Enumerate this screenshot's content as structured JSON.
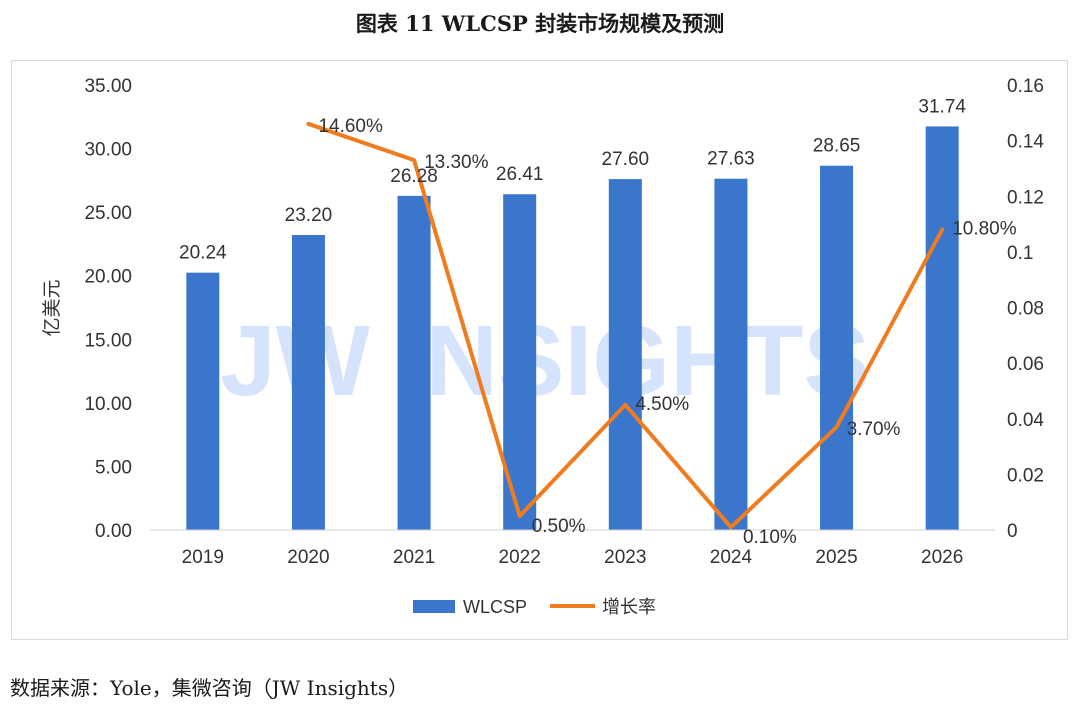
{
  "page": {
    "title": "图表 11 WLCSP  封装市场规模及预测",
    "source": "数据来源：Yole，集微咨询（JW Insights）",
    "watermark": "JW INSIGHTS"
  },
  "chart_data": {
    "type": "bar+line",
    "categories": [
      "2019",
      "2020",
      "2021",
      "2022",
      "2023",
      "2024",
      "2025",
      "2026"
    ],
    "series": [
      {
        "name": "WLCSP",
        "type": "bar",
        "axis": "left",
        "color": "#3a76cc",
        "values": [
          20.24,
          23.2,
          26.28,
          26.41,
          27.6,
          27.63,
          28.65,
          31.74
        ],
        "labels": [
          "20.24",
          "23.20",
          "26.28",
          "26.41",
          "27.60",
          "27.63",
          "28.65",
          "31.74"
        ]
      },
      {
        "name": "增长率",
        "type": "line",
        "axis": "right",
        "color": "#f07c20",
        "values": [
          null,
          0.146,
          0.133,
          0.005,
          0.045,
          0.001,
          0.037,
          0.108
        ],
        "labels": [
          "",
          "14.60%",
          "13.30%",
          "0.50%",
          "4.50%",
          "0.10%",
          "3.70%",
          "10.80%"
        ]
      }
    ],
    "ylabel": "亿美元",
    "ylim": [
      0,
      35
    ],
    "yticks": [
      "0.00",
      "5.00",
      "10.00",
      "15.00",
      "20.00",
      "25.00",
      "30.00",
      "35.00"
    ],
    "y2lim": [
      0,
      0.16
    ],
    "y2ticks": [
      "0",
      "0.02",
      "0.04",
      "0.06",
      "0.08",
      "0.1",
      "0.12",
      "0.14",
      "0.16"
    ],
    "legend": [
      "WLCSP",
      "增长率"
    ],
    "legend_position": "bottom"
  }
}
